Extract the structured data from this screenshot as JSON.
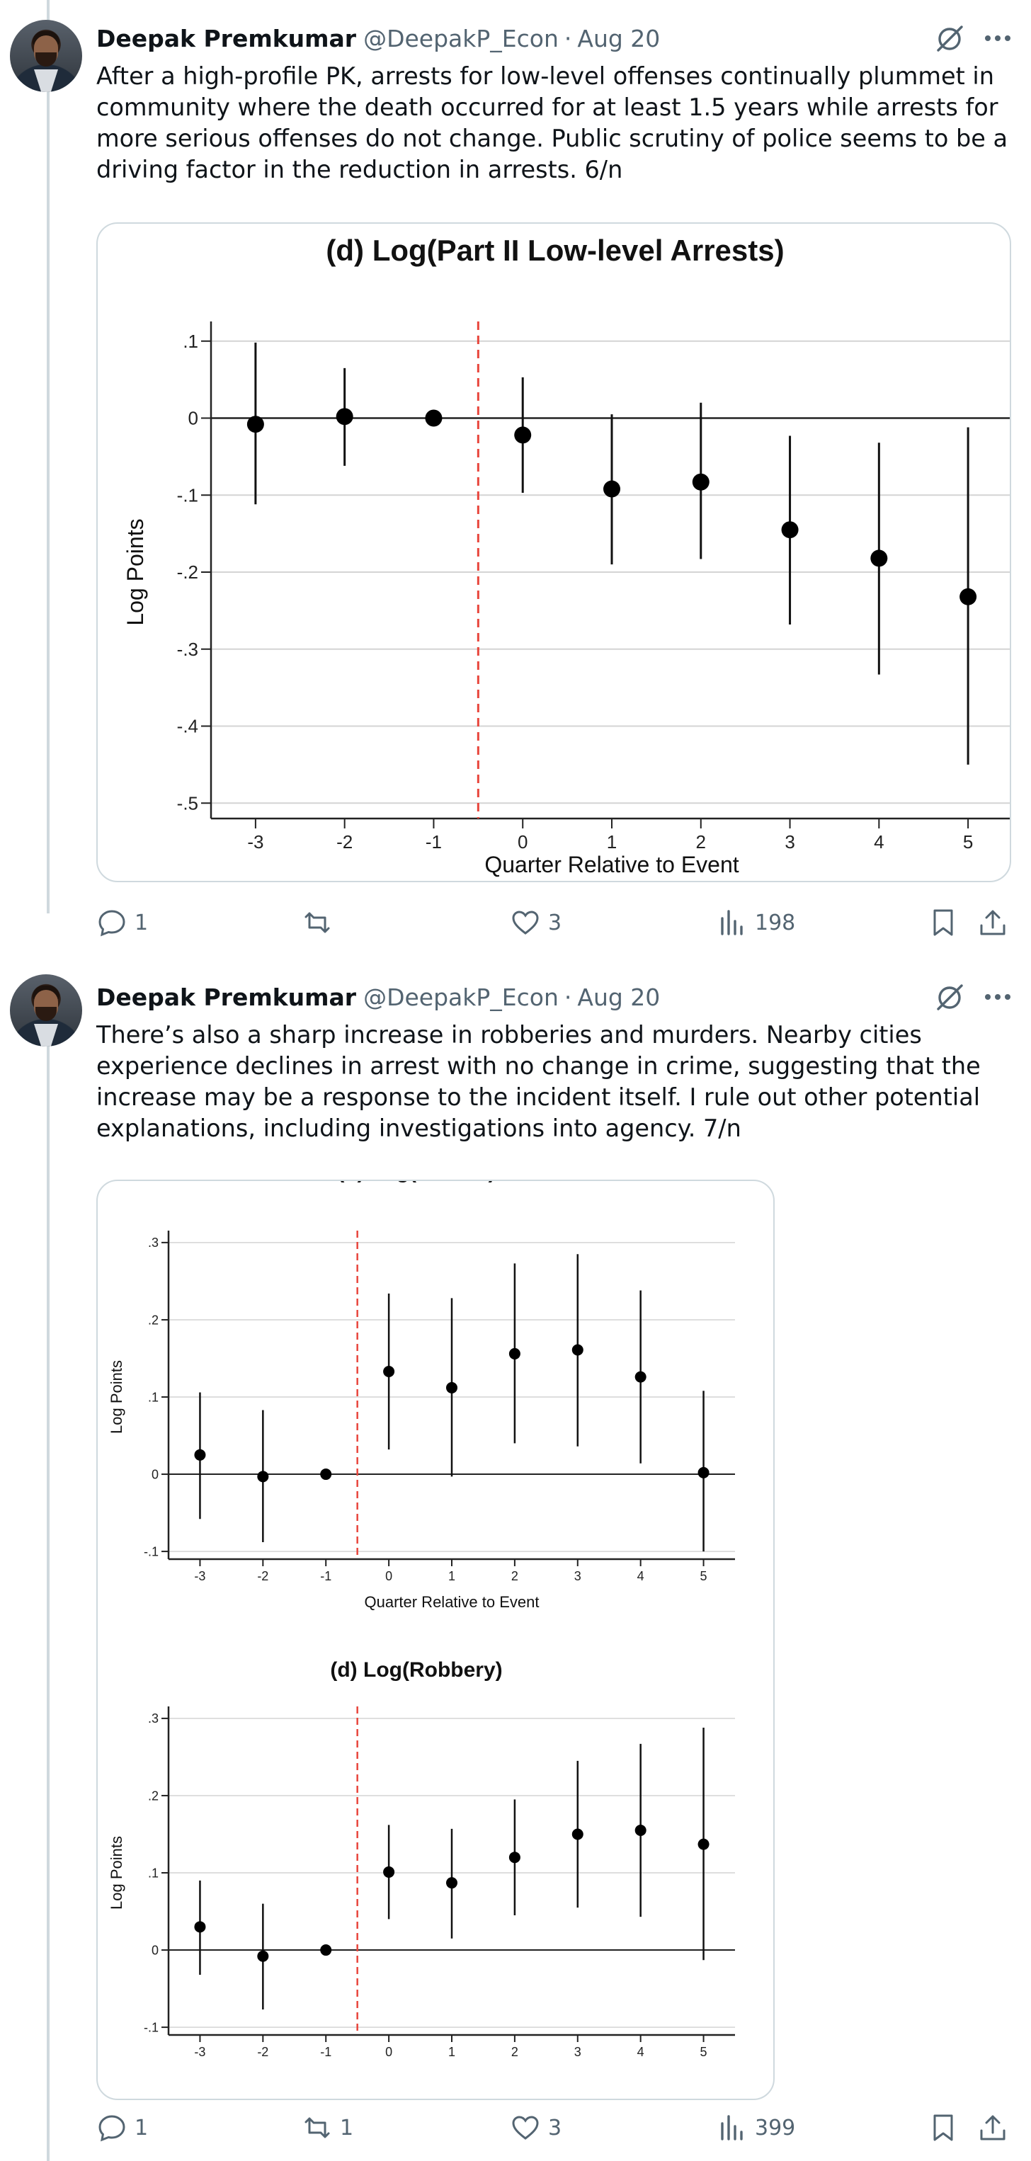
{
  "tweets": [
    {
      "author_name": "Deepak Premkumar",
      "handle": "@DeepakP_Econ",
      "separator": "·",
      "date": "Aug 20",
      "text": "After a high-profile PK, arrests for low-level offenses continually plummet in community where the death occurred for at least 1.5 years while arrests for more serious offenses do not change. Public scrutiny of police seems to be a driving factor in the reduction in arrests. 6/n",
      "icons": {
        "grok": "grok-icon",
        "more": "more-icon"
      },
      "actions": {
        "replies": "1",
        "reposts": "",
        "likes": "3",
        "views": "198"
      }
    },
    {
      "author_name": "Deepak Premkumar",
      "handle": "@DeepakP_Econ",
      "separator": "·",
      "date": "Aug 20",
      "text": "There’s also a sharp increase in robberies and murders. Nearby cities experience declines in arrest with no change in crime, suggesting that the increase may be a response to the incident itself. I rule out other potential explanations, including investigations into agency. 7/n",
      "icons": {
        "grok": "grok-icon",
        "more": "more-icon"
      },
      "actions": {
        "replies": "1",
        "reposts": "1",
        "likes": "3",
        "views": "399"
      }
    }
  ],
  "colors": {
    "accent_line": "#cfd9de",
    "muted": "#536471",
    "event_line": "#e8453c"
  },
  "chart_data": [
    {
      "type": "scatter",
      "subtype": "coefficient-plot",
      "title": "(d) Log(Part II Low-level Arrests)",
      "xlabel": "Quarter Relative to Event",
      "ylabel": "Log Points",
      "x": [
        -3,
        -2,
        -1,
        0,
        1,
        2,
        3,
        4,
        5
      ],
      "y": [
        -0.008,
        0.002,
        0.0,
        -0.022,
        -0.092,
        -0.083,
        -0.145,
        -0.182,
        -0.232
      ],
      "ci_low": [
        -0.112,
        -0.062,
        0.0,
        -0.097,
        -0.19,
        -0.183,
        -0.268,
        -0.333,
        -0.45
      ],
      "ci_high": [
        0.098,
        0.065,
        0.0,
        0.053,
        0.005,
        0.02,
        -0.023,
        -0.032,
        -0.012
      ],
      "yticks": [
        ".1",
        "0",
        "-.1",
        "-.2",
        "-.3",
        "-.4",
        "-.5"
      ],
      "ytick_values": [
        0.1,
        0,
        -0.1,
        -0.2,
        -0.3,
        -0.4,
        -0.5
      ],
      "xticks": [
        "-3",
        "-2",
        "-1",
        "0",
        "1",
        "2",
        "3",
        "4",
        "5"
      ],
      "ylim": [
        -0.52,
        0.12
      ],
      "xlim": [
        -3.5,
        5.5
      ],
      "event_line_x": -0.5,
      "grid": true
    },
    {
      "type": "scatter",
      "subtype": "coefficient-plot",
      "title": "(b) Log(Murder)",
      "xlabel": "Quarter Relative to Event",
      "ylabel": "Log Points",
      "x": [
        -3,
        -2,
        -1,
        0,
        1,
        2,
        3,
        4,
        5
      ],
      "y": [
        0.025,
        -0.003,
        0.0,
        0.133,
        0.112,
        0.156,
        0.161,
        0.126,
        0.002
      ],
      "ci_low": [
        -0.058,
        -0.088,
        0.0,
        0.032,
        -0.003,
        0.04,
        0.036,
        0.014,
        -0.1
      ],
      "ci_high": [
        0.106,
        0.083,
        0.0,
        0.234,
        0.228,
        0.273,
        0.285,
        0.238,
        0.108
      ],
      "yticks": [
        ".3",
        ".2",
        ".1",
        "0",
        "-.1"
      ],
      "ytick_values": [
        0.3,
        0.2,
        0.1,
        0,
        -0.1
      ],
      "xticks": [
        "-3",
        "-2",
        "-1",
        "0",
        "1",
        "2",
        "3",
        "4",
        "5"
      ],
      "ylim": [
        -0.11,
        0.31
      ],
      "xlim": [
        -3.5,
        5.5
      ],
      "event_line_x": -0.5,
      "grid": true
    },
    {
      "type": "scatter",
      "subtype": "coefficient-plot",
      "title": "(d) Log(Robbery)",
      "xlabel": "Quarter Relative to Event",
      "ylabel": "Log Points",
      "x": [
        -3,
        -2,
        -1,
        0,
        1,
        2,
        3,
        4,
        5
      ],
      "y": [
        0.03,
        -0.008,
        0.0,
        0.101,
        0.087,
        0.12,
        0.15,
        0.155,
        0.137
      ],
      "ci_low": [
        -0.032,
        -0.077,
        0.0,
        0.04,
        0.015,
        0.045,
        0.055,
        0.043,
        -0.013
      ],
      "ci_high": [
        0.09,
        0.06,
        0.0,
        0.162,
        0.157,
        0.195,
        0.245,
        0.267,
        0.288
      ],
      "yticks": [
        ".3",
        ".2",
        ".1",
        "0",
        "-.1"
      ],
      "ytick_values": [
        0.3,
        0.2,
        0.1,
        0,
        -0.1
      ],
      "xticks": [
        "-3",
        "-2",
        "-1",
        "0",
        "1",
        "2",
        "3",
        "4",
        "5"
      ],
      "ylim": [
        -0.11,
        0.31
      ],
      "xlim": [
        -3.5,
        5.5
      ],
      "event_line_x": -0.5,
      "grid": true
    }
  ]
}
